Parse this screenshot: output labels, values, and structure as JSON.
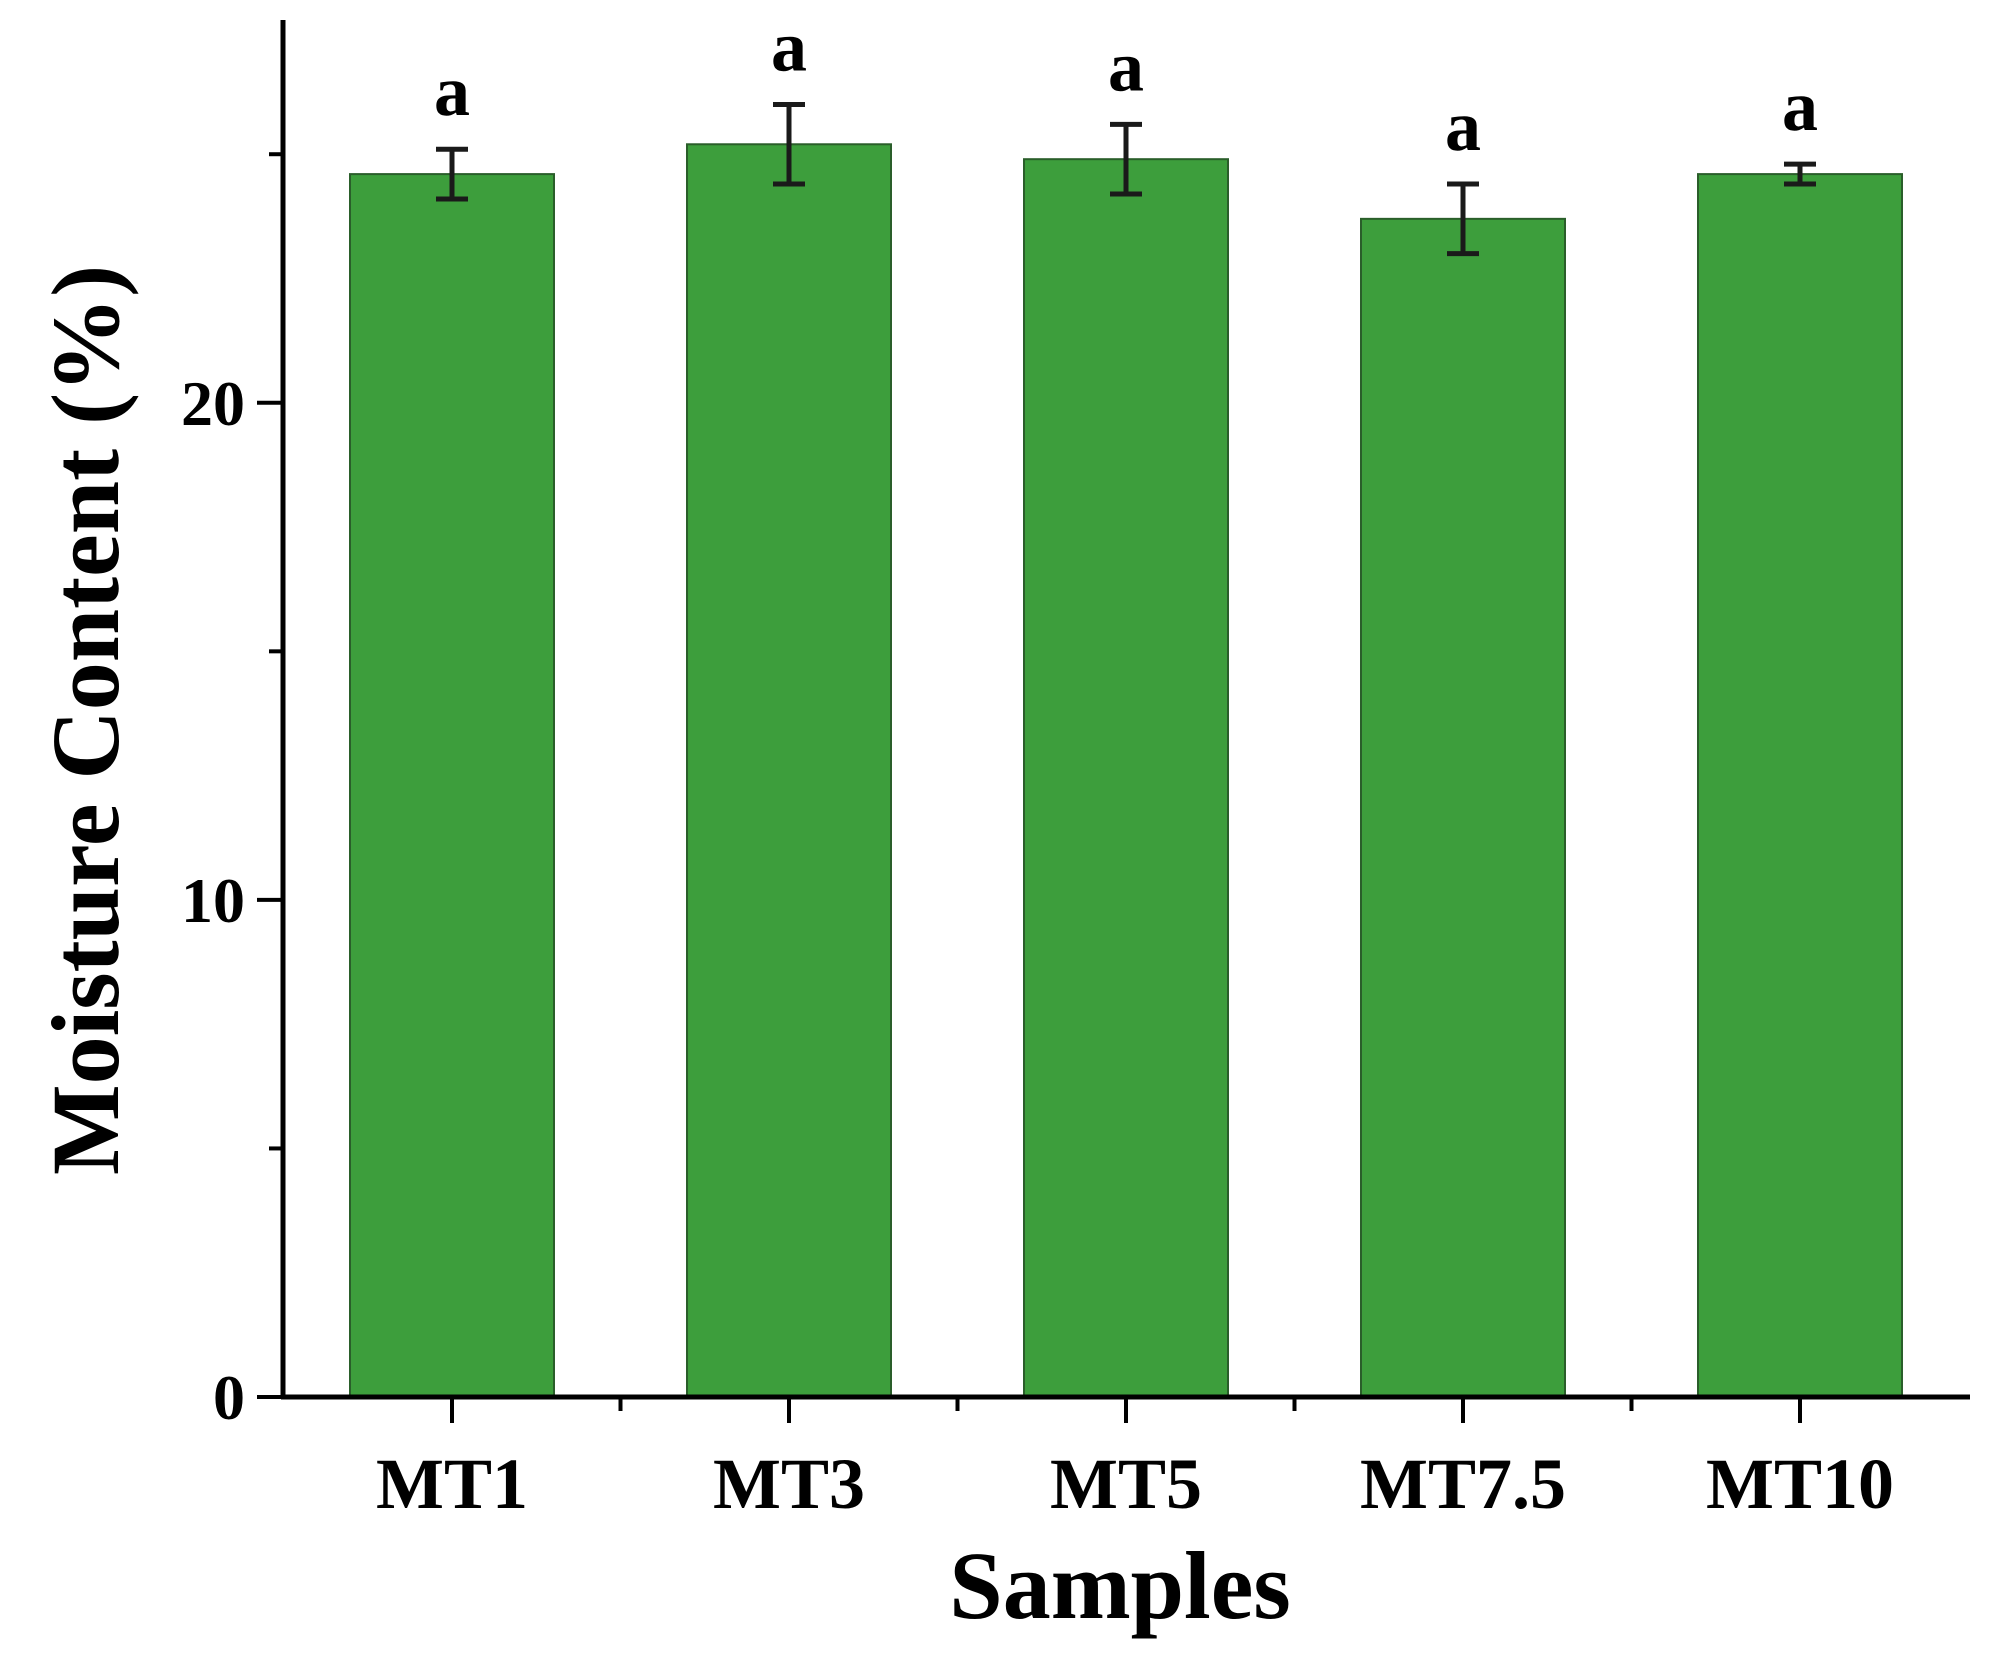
{
  "chart_data": {
    "type": "bar",
    "title": "",
    "xlabel": "Samples",
    "ylabel": "Moisture Content (%)",
    "categories": [
      "MT1",
      "MT3",
      "MT5",
      "MT7.5",
      "MT10"
    ],
    "values": [
      24.6,
      25.2,
      24.9,
      23.7,
      24.6
    ],
    "errors": [
      0.5,
      0.8,
      0.7,
      0.7,
      0.2
    ],
    "significance": [
      "a",
      "a",
      "a",
      "a",
      "a"
    ],
    "ylim": [
      0,
      27.7
    ],
    "yticks": [
      0,
      10,
      20
    ],
    "grid": false,
    "bar_color": "#3d9e3c",
    "bar_edge_color": "#2a5e2a",
    "axis_color": "#000000"
  }
}
